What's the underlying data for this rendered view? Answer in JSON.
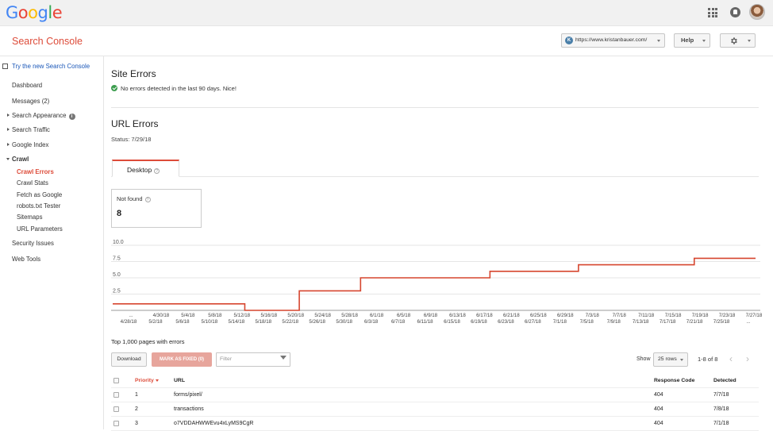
{
  "topbar": {
    "logo_letters": [
      {
        "ch": "G",
        "color": "#4285f4"
      },
      {
        "ch": "o",
        "color": "#ea4335"
      },
      {
        "ch": "o",
        "color": "#fbbc05"
      },
      {
        "ch": "g",
        "color": "#4285f4"
      },
      {
        "ch": "l",
        "color": "#34a853"
      },
      {
        "ch": "e",
        "color": "#ea4335"
      }
    ]
  },
  "header": {
    "app_title": "Search Console",
    "site_url": "https://www.kristanbauer.com/",
    "help_label": "Help"
  },
  "sidebar": {
    "new_console": "Try the new Search Console",
    "items": [
      {
        "label": "Dashboard"
      },
      {
        "label": "Messages (2)"
      },
      {
        "label": "Search Appearance"
      },
      {
        "label": "Search Traffic"
      },
      {
        "label": "Google Index"
      },
      {
        "label": "Crawl"
      },
      {
        "label": "Security Issues"
      },
      {
        "label": "Web Tools"
      }
    ],
    "crawl_sub": [
      {
        "label": "Crawl Errors"
      },
      {
        "label": "Crawl Stats"
      },
      {
        "label": "Fetch as Google"
      },
      {
        "label": "robots.txt Tester"
      },
      {
        "label": "Sitemaps"
      },
      {
        "label": "URL Parameters"
      }
    ]
  },
  "main": {
    "site_errors_title": "Site Errors",
    "site_errors_msg": "No errors detected in the last 90 days. Nice!",
    "url_errors_title": "URL Errors",
    "status": "Status: 7/29/18",
    "tab_desktop": "Desktop",
    "notfound_label": "Not found",
    "notfound_value": "8",
    "top_pages": "Top 1,000 pages with errors",
    "download_label": "Download",
    "mark_fixed_label": "MARK AS FIXED (0)",
    "filter_placeholder": "Filter",
    "show_label": "Show",
    "rows_value": "25 rows",
    "range_label": "1-8 of 8"
  },
  "table": {
    "headers": {
      "priority": "Priority",
      "url": "URL",
      "code": "Response Code",
      "detected": "Detected"
    },
    "rows": [
      {
        "priority": "1",
        "url": "forms/pixel/",
        "code": "404",
        "detected": "7/7/18"
      },
      {
        "priority": "2",
        "url": "transactions",
        "code": "404",
        "detected": "7/8/18"
      },
      {
        "priority": "3",
        "url": "o7VDDAHWWEvu4xLyMS9CgR",
        "code": "404",
        "detected": "7/1/18"
      }
    ]
  },
  "chart_data": {
    "type": "line",
    "series": [
      {
        "color": "#d6462f",
        "steps": [
          {
            "x": "4/28/18",
            "y": 1
          },
          {
            "x": "5/15/18",
            "y": 0
          },
          {
            "x": "5/23/18",
            "y": 3
          },
          {
            "x": "6/1/18",
            "y": 5
          },
          {
            "x": "6/20/18",
            "y": 6
          },
          {
            "x": "7/3/18",
            "y": 7
          },
          {
            "x": "7/20/18",
            "y": 8
          },
          {
            "x": "7/29/18",
            "y": 8
          }
        ]
      }
    ],
    "ylim": [
      0,
      10
    ],
    "yticks": [
      "10.0",
      "7.5",
      "5.0",
      "2.5"
    ],
    "xticks_upper": [
      "...",
      "4/30/18",
      "5/4/18",
      "5/8/18",
      "5/12/18",
      "5/16/18",
      "5/20/18",
      "5/24/18",
      "5/28/18",
      "6/1/18",
      "6/5/18",
      "6/9/18",
      "6/13/18",
      "6/17/18",
      "6/21/18",
      "6/25/18",
      "6/29/18",
      "7/3/18",
      "7/7/18",
      "7/11/18",
      "7/15/18",
      "7/19/18",
      "7/23/18",
      "7/27/18"
    ],
    "xticks_lower": [
      "4/28/18",
      "5/2/18",
      "5/6/18",
      "5/10/18",
      "5/14/18",
      "5/18/18",
      "5/22/18",
      "5/26/18",
      "5/30/18",
      "6/3/18",
      "6/7/18",
      "6/11/18",
      "6/15/18",
      "6/19/18",
      "6/23/18",
      "6/27/18",
      "7/1/18",
      "7/5/18",
      "7/9/18",
      "7/13/18",
      "7/17/18",
      "7/21/18",
      "7/25/18",
      "..."
    ],
    "grid": true
  }
}
